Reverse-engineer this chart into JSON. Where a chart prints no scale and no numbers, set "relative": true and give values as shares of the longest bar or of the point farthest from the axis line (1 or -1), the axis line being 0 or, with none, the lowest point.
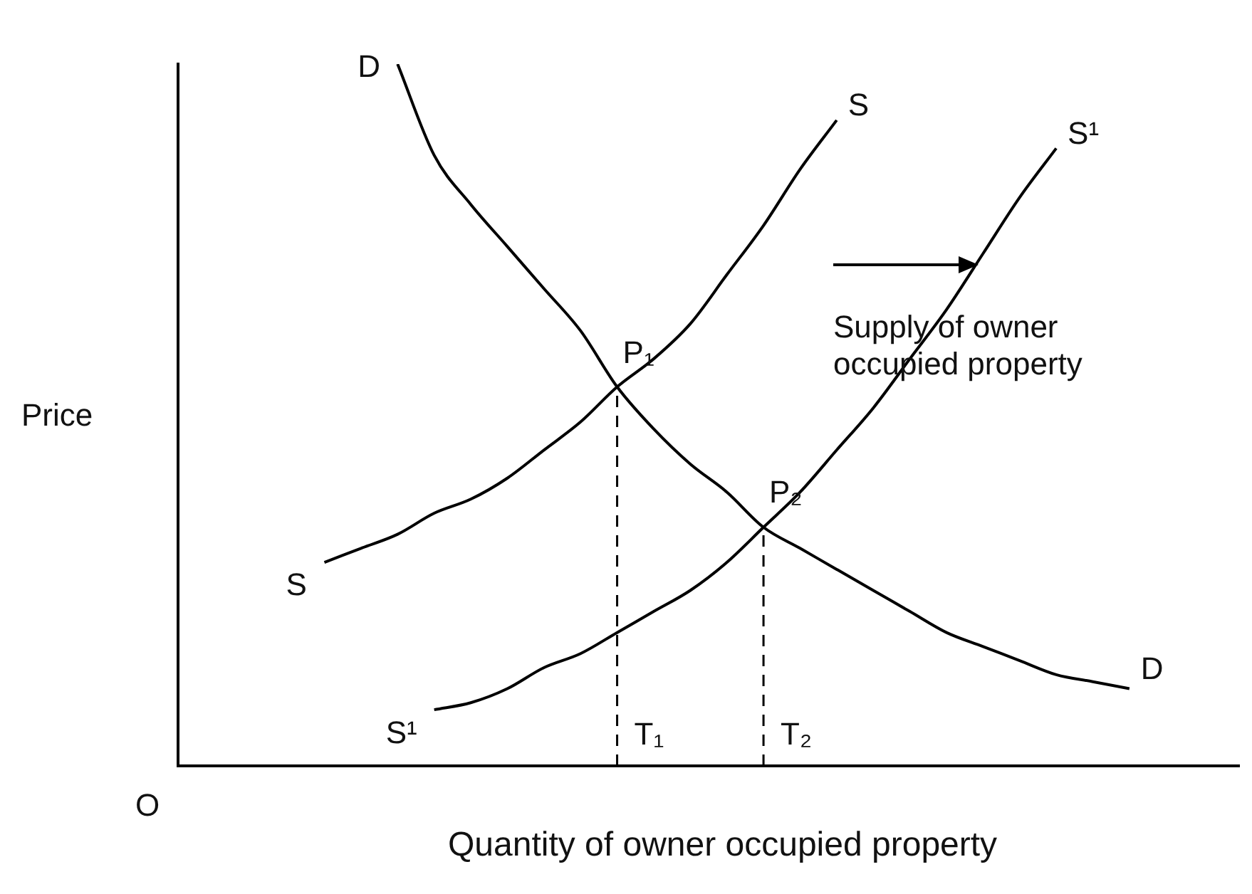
{
  "chart_data": {
    "type": "line",
    "relative": true,
    "xlabel": "Quantity of owner occupied property",
    "ylabel": "Price",
    "tick_labels": false,
    "legend": false,
    "grid": false,
    "marker": "none",
    "categories": [
      null,
      null,
      null,
      null,
      null,
      null,
      null,
      null,
      null,
      null,
      null,
      null,
      null,
      null,
      null,
      null,
      null,
      null,
      null,
      null,
      null,
      null,
      null,
      null,
      null,
      null,
      null,
      null,
      null,
      null
    ],
    "series": [
      {
        "name": "D",
        "color": "#000000",
        "values": [
          null,
          null,
          null,
          null,
          null,
          null,
          1.0,
          0.87,
          0.8,
          0.74,
          0.68,
          0.62,
          0.54,
          0.48,
          0.43,
          0.39,
          0.34,
          0.31,
          0.28,
          0.25,
          0.22,
          0.19,
          0.17,
          0.15,
          0.13,
          0.12,
          0.11,
          null,
          null,
          null
        ]
      },
      {
        "name": "S",
        "color": "#000000",
        "values": [
          null,
          null,
          null,
          null,
          0.29,
          0.31,
          0.33,
          0.36,
          0.38,
          0.41,
          0.45,
          0.49,
          0.54,
          0.58,
          0.63,
          0.7,
          0.77,
          0.85,
          0.92,
          null,
          null,
          null,
          null,
          null,
          null,
          null,
          null,
          null,
          null,
          null
        ]
      },
      {
        "name": "S¹",
        "color": "#000000",
        "values": [
          null,
          null,
          null,
          null,
          null,
          null,
          null,
          0.08,
          0.09,
          0.11,
          0.14,
          0.16,
          0.19,
          0.22,
          0.25,
          0.29,
          0.34,
          0.39,
          0.45,
          0.51,
          0.58,
          0.65,
          0.73,
          0.81,
          0.88,
          null,
          null,
          null,
          null,
          null
        ]
      }
    ],
    "annotations": [
      "P₁",
      "P₂",
      "T₁",
      "T₂",
      "Supply of owner occupied property",
      "O"
    ]
  }
}
